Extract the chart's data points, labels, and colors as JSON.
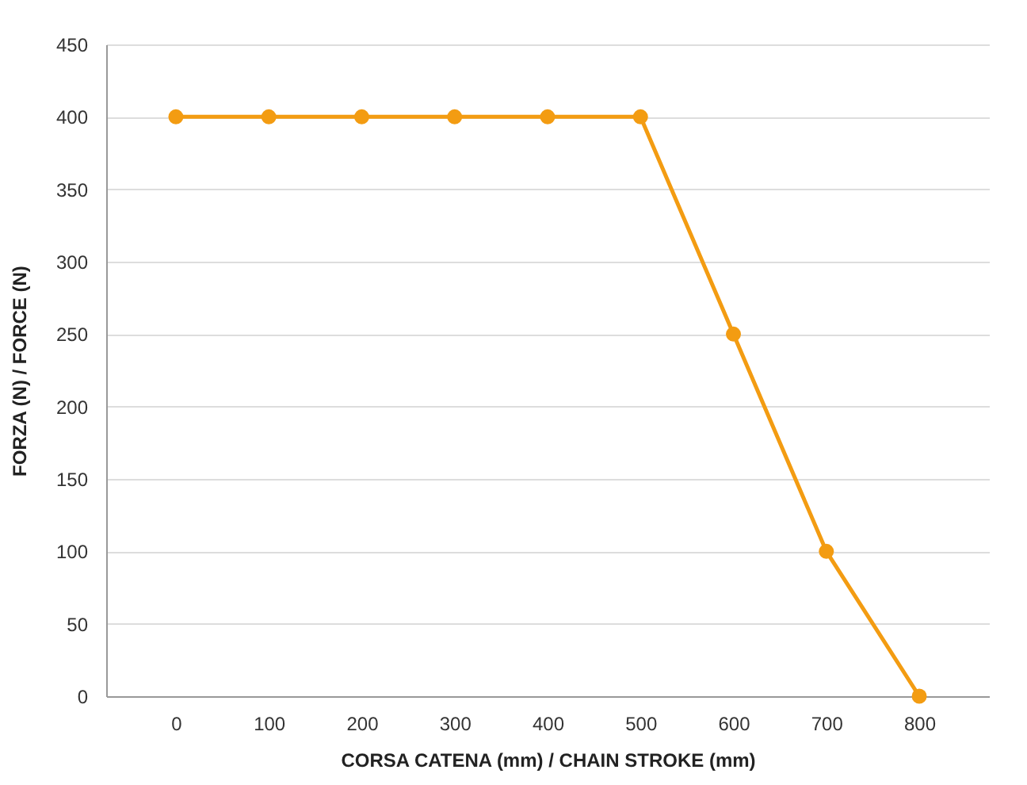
{
  "chart_data": {
    "type": "line",
    "xlabel": "CORSA CATENA (mm) / CHAIN STROKE (mm)",
    "ylabel": "FORZA (N) /  FORCE (N)",
    "categories": [
      "0",
      "100",
      "200",
      "300",
      "400",
      "500",
      "600",
      "700",
      "800"
    ],
    "series": [
      {
        "color": "#f39c12",
        "values": [
          400,
          400,
          400,
          400,
          400,
          400,
          250,
          100,
          0
        ]
      }
    ],
    "ylim": [
      0,
      450
    ],
    "yticks": [
      0,
      50,
      100,
      150,
      200,
      250,
      300,
      350,
      400,
      450
    ],
    "grid": "y",
    "marker": "circle",
    "line_style": "solid"
  }
}
